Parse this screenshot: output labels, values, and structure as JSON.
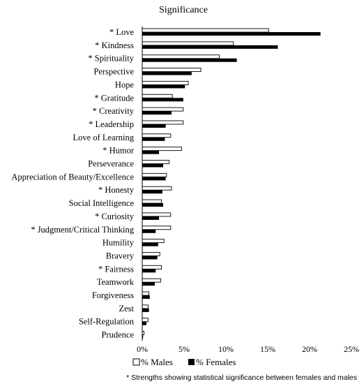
{
  "chart_data": {
    "type": "bar",
    "orientation": "horizontal",
    "title": "Significance",
    "xlabel": "",
    "ylabel": "",
    "xlim": [
      0,
      25
    ],
    "xticks": [
      "0%",
      "5%",
      "10%",
      "15%",
      "20%",
      "25%"
    ],
    "grid": false,
    "legend_position": "bottom",
    "categories": [
      "* Love",
      "* Kindness",
      "* Spirituality",
      "Perspective",
      "Hope",
      "* Gratitude",
      "* Creativity",
      "* Leadership",
      "Love of Learning",
      "* Humor",
      "Perseverance",
      "Appreciation of Beauty/Excellence",
      "* Honesty",
      "Social Intelligence",
      "* Curiosity",
      "* Judgment/Critical Thinking",
      "Humility",
      "Bravery",
      "* Fairness",
      "Teamwork",
      "Forgiveness",
      "Zest",
      "Self-Regulation",
      "Prudence"
    ],
    "series": [
      {
        "name": "% Males",
        "color": "#ffffff",
        "values": [
          15.1,
          10.9,
          9.2,
          7.0,
          5.5,
          3.6,
          4.9,
          4.9,
          3.4,
          4.7,
          3.2,
          2.9,
          3.5,
          2.3,
          3.4,
          3.4,
          2.6,
          2.1,
          2.3,
          2.2,
          0.8,
          0.7,
          0.7,
          0.2
        ]
      },
      {
        "name": "% Females",
        "color": "#000000",
        "values": [
          21.3,
          16.2,
          11.3,
          5.9,
          5.1,
          4.9,
          3.5,
          2.8,
          2.7,
          2.0,
          2.5,
          2.8,
          2.4,
          2.5,
          2.0,
          1.6,
          1.9,
          1.8,
          1.6,
          1.5,
          0.9,
          0.8,
          0.5,
          0.1
        ]
      }
    ],
    "footnote": "* Strengths showing statistical significance between females and males"
  }
}
